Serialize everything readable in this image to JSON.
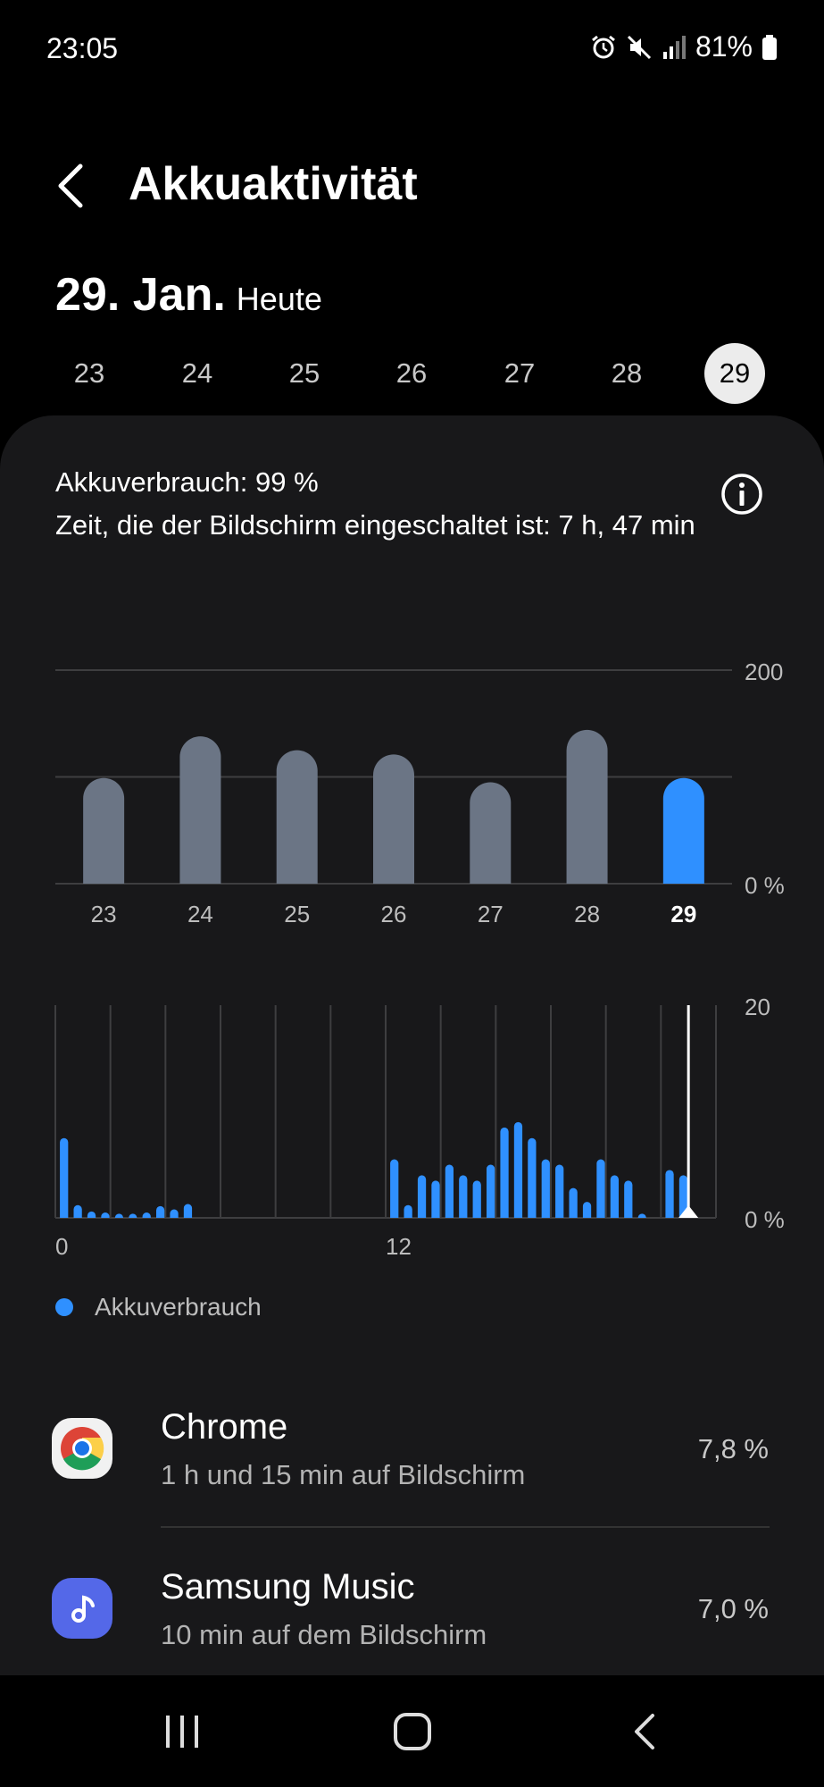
{
  "status_bar": {
    "time": "23:05",
    "battery_text": "81%",
    "icons": [
      "alarm-icon",
      "mute-icon",
      "signal-icon",
      "battery-icon"
    ]
  },
  "header": {
    "title": "Akkuaktivität",
    "back_icon": "chevron-left-icon"
  },
  "date": {
    "main": "29. Jan.",
    "sub": "Heute"
  },
  "day_selector": {
    "days": [
      "23",
      "24",
      "25",
      "26",
      "27",
      "28",
      "29"
    ],
    "selected": "29"
  },
  "summary": {
    "usage": "Akkuverbrauch: 99 %",
    "screen_time": "Zeit, die der Bildschirm eingeschaltet ist: 7 h, 47 min"
  },
  "chart_data": [
    {
      "type": "bar",
      "categories": [
        "23",
        "24",
        "25",
        "26",
        "27",
        "28",
        "29"
      ],
      "values": [
        99,
        138,
        125,
        121,
        95,
        144,
        99
      ],
      "highlighted": "29",
      "ylim": [
        0,
        200
      ],
      "yticks": [
        "200",
        "0 %"
      ],
      "grid": true,
      "colors": {
        "default": "#6b7585",
        "highlight": "#2f90ff"
      }
    },
    {
      "type": "bar",
      "x_ticks": [
        "0",
        "12"
      ],
      "values": [
        7.5,
        1.2,
        0.6,
        0.5,
        0.3,
        0.3,
        0.5,
        1.1,
        0.8,
        1.3,
        0,
        0,
        0,
        0,
        0,
        0,
        0,
        0,
        0,
        0,
        0,
        0,
        0,
        0,
        5.5,
        1.2,
        4.0,
        3.5,
        5.0,
        4.0,
        3.5,
        5.0,
        8.5,
        9.0,
        7.5,
        5.5,
        5.0,
        2.8,
        1.5,
        5.5,
        4.0,
        3.5,
        0.2,
        0,
        4.5,
        4.0
      ],
      "bins_per_hour": 2,
      "now_hour": 23,
      "ylim": [
        0,
        20
      ],
      "yticks": [
        "20",
        "0 %"
      ],
      "grid": true,
      "colors": {
        "bar": "#2f90ff"
      }
    }
  ],
  "legend": {
    "label": "Akkuverbrauch",
    "color": "#2f90ff"
  },
  "apps": [
    {
      "name": "Chrome",
      "detail": "1 h und 15 min auf Bildschirm",
      "percent": "7,8 %",
      "icon": "chrome-icon"
    },
    {
      "name": "Samsung Music",
      "detail": "10 min auf dem Bildschirm",
      "percent": "7,0 %",
      "icon": "music-note-icon"
    }
  ],
  "navbar": {
    "icons": [
      "recent-apps-icon",
      "home-icon",
      "back-icon"
    ]
  }
}
